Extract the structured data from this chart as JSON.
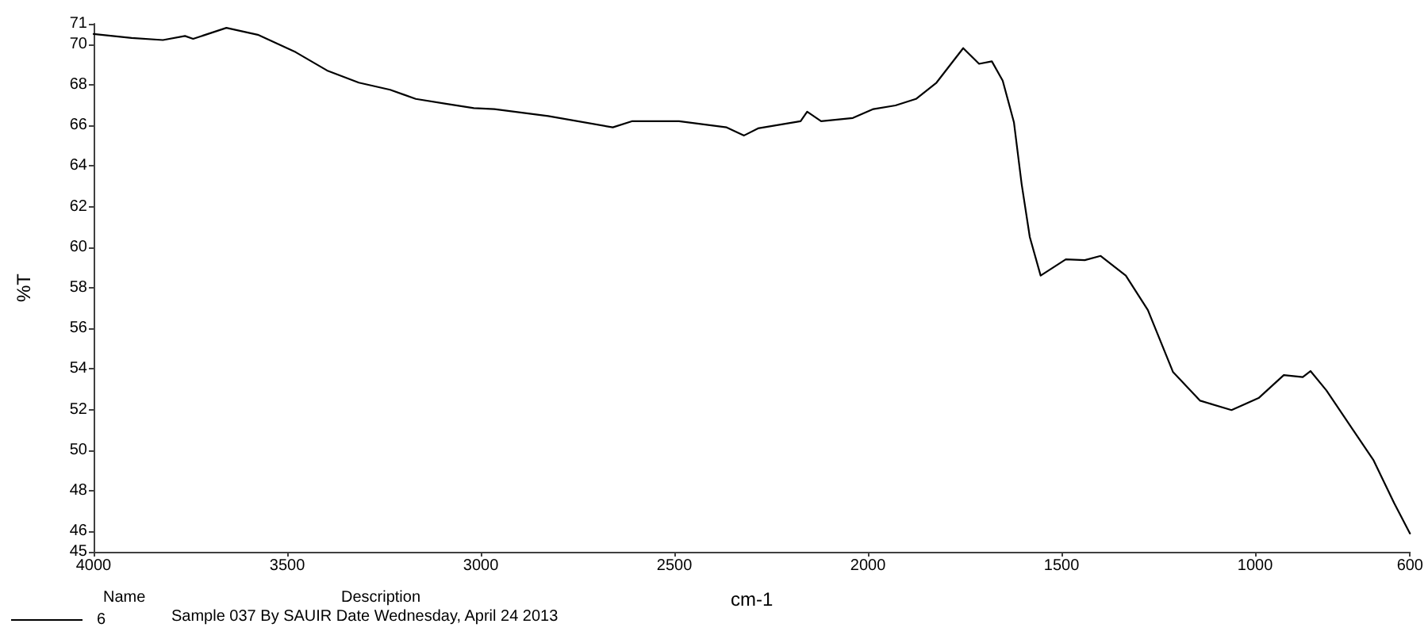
{
  "chart_data": {
    "type": "line",
    "xlabel": "cm-1",
    "ylabel": "%T",
    "annotations": [
      "Name",
      "Description",
      "Sample 037 By SAUIR Date Wednesday, April 24 2013"
    ],
    "x": [
      4000,
      3902,
      3821,
      3764,
      3743,
      3657,
      3576,
      3478,
      3397,
      3315,
      3234,
      3168,
      3087,
      3018,
      2965,
      2826,
      2659,
      2610,
      2488,
      2365,
      2320,
      2284,
      2174,
      2157,
      2121,
      2039,
      1986,
      1929,
      1876,
      1823,
      1754,
      1713,
      1680,
      1652,
      1623,
      1603,
      1582,
      1554,
      1489,
      1440,
      1399,
      1334,
      1277,
      1212,
      1142,
      1061,
      991,
      926,
      877,
      857,
      816,
      747,
      694,
      641,
      600
    ],
    "series": [
      {
        "name": "6",
        "color": "#000000",
        "values": [
          70.5,
          70.3,
          70.2,
          70.4,
          70.26,
          70.8,
          70.46,
          69.6,
          68.7,
          68.1,
          67.75,
          67.3,
          67.05,
          66.85,
          66.8,
          66.46,
          65.9,
          66.2,
          66.2,
          65.9,
          65.5,
          65.85,
          66.2,
          66.67,
          66.2,
          66.36,
          66.8,
          66.98,
          67.3,
          68.1,
          69.8,
          69.03,
          69.15,
          68.2,
          66.15,
          63.1,
          60.5,
          58.6,
          59.4,
          59.36,
          59.57,
          58.6,
          56.9,
          53.85,
          52.44,
          51.98,
          52.57,
          53.7,
          53.6,
          53.9,
          52.95,
          51.0,
          49.5,
          47.4,
          45.9
        ]
      }
    ],
    "xlim": [
      4000,
      600
    ],
    "xticks": [
      4000,
      3500,
      3000,
      2500,
      2000,
      1500,
      1000,
      600
    ],
    "ylim": [
      45,
      71
    ],
    "yticks": [
      45,
      46,
      48,
      50,
      52,
      54,
      56,
      58,
      60,
      62,
      64,
      66,
      68,
      70,
      71
    ],
    "grid": false,
    "legend": "bottom left",
    "marker": "none",
    "line_style": "solid"
  }
}
